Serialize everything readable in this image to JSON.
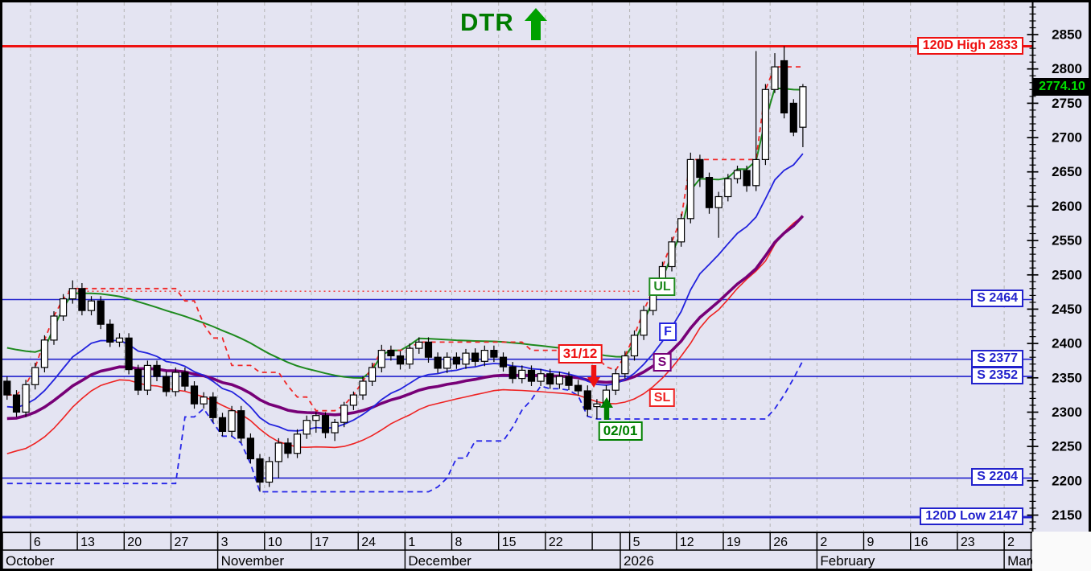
{
  "window": {
    "background": "#e4e4f2",
    "corner_background": "#fafafa"
  },
  "title": {
    "text": "DTR",
    "arrow_icon": "up-arrow",
    "color": "#007c00",
    "arrow_color": "#00a000"
  },
  "last_price": {
    "value": "2774.10",
    "text_color": "#00dd00",
    "background": "#000000"
  },
  "chart_data": {
    "type": "candlestick-ohlc",
    "unit": "trading-day",
    "title": "DTR",
    "last_close": 2774.1,
    "y_axis": {
      "min": 2150,
      "max": 2900,
      "major_step": 50,
      "minor_step": 10
    },
    "x_axis": {
      "weeks": [
        {
          "label": "",
          "days": 3
        },
        {
          "label": "6",
          "days": 5
        },
        {
          "label": "13",
          "days": 5
        },
        {
          "label": "20",
          "days": 5
        },
        {
          "label": "27",
          "days": 5
        },
        {
          "label": "3",
          "days": 5
        },
        {
          "label": "10",
          "days": 5
        },
        {
          "label": "17",
          "days": 5
        },
        {
          "label": "24",
          "days": 5
        },
        {
          "label": "1",
          "days": 5
        },
        {
          "label": "8",
          "days": 5
        },
        {
          "label": "15",
          "days": 5
        },
        {
          "label": "22",
          "days": 5
        },
        {
          "label": "",
          "days": 4
        },
        {
          "label": "5",
          "days": 5
        },
        {
          "label": "12",
          "days": 5
        },
        {
          "label": "19",
          "days": 5
        },
        {
          "label": "26",
          "days": 5
        },
        {
          "label": "2",
          "days": 5
        },
        {
          "label": "9",
          "days": 5
        },
        {
          "label": "16",
          "days": 5
        },
        {
          "label": "23",
          "days": 5
        },
        {
          "label": "2",
          "days": 3
        }
      ],
      "months": [
        {
          "label": "October",
          "days": 23
        },
        {
          "label": "November",
          "days": 20
        },
        {
          "label": "December",
          "days": 23
        },
        {
          "label": "2026",
          "days": 21
        },
        {
          "label": "February",
          "days": 20
        },
        {
          "label": "March",
          "days": 3
        }
      ]
    },
    "levels": [
      {
        "label": "120D High 2833",
        "price": 2833,
        "color": "#ee1111",
        "line_width": 3
      },
      {
        "label": "S 2464",
        "price": 2464,
        "color": "#2222cc",
        "line_width": 1.6
      },
      {
        "label": "S 2377",
        "price": 2377,
        "color": "#2222cc",
        "line_width": 1.6
      },
      {
        "label": "S 2352",
        "price": 2352,
        "color": "#2222cc",
        "line_width": 1.6
      },
      {
        "label": "S 2204",
        "price": 2204,
        "color": "#2222cc",
        "line_width": 1.6
      },
      {
        "label": "120D Low 2147",
        "price": 2147,
        "color": "#2222cc",
        "line_width": 3
      }
    ],
    "ma_labels": [
      {
        "label": "UL",
        "color": "#1e8a1e",
        "day": 70,
        "price": 2482
      },
      {
        "label": "F",
        "color": "#2222dd",
        "day": 70.6,
        "price": 2417
      },
      {
        "label": "S",
        "color": "#770077",
        "day": 70,
        "price": 2372
      },
      {
        "label": "SL",
        "color": "#ee2222",
        "day": 70,
        "price": 2321
      }
    ],
    "signals": [
      {
        "label": "31/12",
        "color": "#ee1111",
        "direction": "down",
        "day": 62.7,
        "price": 2336
      },
      {
        "label": "02/01",
        "color": "#008000",
        "direction": "up",
        "day": 64.0,
        "price": 2322
      }
    ],
    "prior_high": {
      "level": 2476,
      "from_day": 7,
      "to_day": 68
    },
    "trailing_high_window": 12,
    "trailing_low_window": 19,
    "pre_chart_low": 2196,
    "overlay_colors": {
      "UL": "#1e8a1e",
      "F": "#2222dd",
      "S": "#770077",
      "SL": "#ee2222",
      "dashed_high": "#f02828",
      "dashed_low": "#2424e8",
      "dotted_prior_high": "#f04848",
      "grid": "#b4b4b4"
    },
    "candles": [
      [
        2345,
        2352,
        2318,
        2325
      ],
      [
        2325,
        2332,
        2293,
        2300
      ],
      [
        2300,
        2347,
        2293,
        2340
      ],
      [
        2340,
        2372,
        2333,
        2365
      ],
      [
        2365,
        2412,
        2358,
        2405
      ],
      [
        2405,
        2447,
        2398,
        2440
      ],
      [
        2440,
        2472,
        2433,
        2465
      ],
      [
        2465,
        2492,
        2458,
        2480
      ],
      [
        2480,
        2488,
        2441,
        2448
      ],
      [
        2448,
        2469,
        2441,
        2462
      ],
      [
        2462,
        2469,
        2421,
        2428
      ],
      [
        2428,
        2435,
        2395,
        2402
      ],
      [
        2402,
        2415,
        2395,
        2408
      ],
      [
        2408,
        2415,
        2355,
        2362
      ],
      [
        2362,
        2369,
        2325,
        2332
      ],
      [
        2332,
        2375,
        2325,
        2368
      ],
      [
        2368,
        2375,
        2345,
        2352
      ],
      [
        2352,
        2359,
        2323,
        2330
      ],
      [
        2330,
        2365,
        2323,
        2358
      ],
      [
        2358,
        2365,
        2331,
        2338
      ],
      [
        2338,
        2345,
        2305,
        2312
      ],
      [
        2312,
        2329,
        2305,
        2322
      ],
      [
        2322,
        2329,
        2285,
        2292
      ],
      [
        2292,
        2299,
        2265,
        2272
      ],
      [
        2272,
        2309,
        2265,
        2302
      ],
      [
        2302,
        2309,
        2255,
        2262
      ],
      [
        2262,
        2269,
        2225,
        2232
      ],
      [
        2232,
        2239,
        2184,
        2198
      ],
      [
        2198,
        2235,
        2191,
        2228
      ],
      [
        2228,
        2262,
        2204,
        2255
      ],
      [
        2255,
        2262,
        2233,
        2240
      ],
      [
        2240,
        2275,
        2233,
        2268
      ],
      [
        2268,
        2295,
        2261,
        2288
      ],
      [
        2288,
        2300,
        2270,
        2295
      ],
      [
        2295,
        2300,
        2262,
        2270
      ],
      [
        2270,
        2290,
        2258,
        2285
      ],
      [
        2285,
        2315,
        2278,
        2310
      ],
      [
        2310,
        2330,
        2303,
        2325
      ],
      [
        2325,
        2352,
        2318,
        2345
      ],
      [
        2345,
        2372,
        2338,
        2365
      ],
      [
        2365,
        2398,
        2358,
        2390
      ],
      [
        2390,
        2397,
        2375,
        2382
      ],
      [
        2382,
        2389,
        2362,
        2370
      ],
      [
        2370,
        2400,
        2363,
        2393
      ],
      [
        2393,
        2409,
        2385,
        2402
      ],
      [
        2402,
        2409,
        2372,
        2380
      ],
      [
        2380,
        2387,
        2357,
        2364
      ],
      [
        2364,
        2387,
        2357,
        2380
      ],
      [
        2380,
        2387,
        2363,
        2370
      ],
      [
        2370,
        2392,
        2363,
        2386
      ],
      [
        2386,
        2393,
        2367,
        2374
      ],
      [
        2374,
        2397,
        2367,
        2390
      ],
      [
        2390,
        2397,
        2373,
        2380
      ],
      [
        2380,
        2387,
        2359,
        2366
      ],
      [
        2366,
        2373,
        2342,
        2349
      ],
      [
        2349,
        2368,
        2342,
        2361
      ],
      [
        2361,
        2368,
        2338,
        2345
      ],
      [
        2345,
        2363,
        2338,
        2356
      ],
      [
        2356,
        2363,
        2334,
        2341
      ],
      [
        2341,
        2359,
        2334,
        2352
      ],
      [
        2352,
        2359,
        2332,
        2339
      ],
      [
        2339,
        2347,
        2324,
        2331
      ],
      [
        2331,
        2339,
        2294,
        2304
      ],
      [
        2308,
        2319,
        2290,
        2312
      ],
      [
        2312,
        2339,
        2305,
        2332
      ],
      [
        2332,
        2363,
        2325,
        2356
      ],
      [
        2356,
        2389,
        2349,
        2382
      ],
      [
        2382,
        2419,
        2375,
        2412
      ],
      [
        2412,
        2455,
        2405,
        2448
      ],
      [
        2448,
        2485,
        2441,
        2478
      ],
      [
        2478,
        2519,
        2471,
        2512
      ],
      [
        2512,
        2555,
        2505,
        2548
      ],
      [
        2548,
        2589,
        2541,
        2582
      ],
      [
        2582,
        2678,
        2575,
        2668
      ],
      [
        2668,
        2675,
        2628,
        2642
      ],
      [
        2642,
        2649,
        2589,
        2598
      ],
      [
        2598,
        2621,
        2554,
        2614
      ],
      [
        2614,
        2647,
        2607,
        2640
      ],
      [
        2640,
        2659,
        2633,
        2652
      ],
      [
        2652,
        2659,
        2621,
        2630
      ],
      [
        2630,
        2826,
        2622,
        2668
      ],
      [
        2668,
        2778,
        2660,
        2770
      ],
      [
        2770,
        2823,
        2765,
        2803
      ],
      [
        2812,
        2833,
        2728,
        2736
      ],
      [
        2750,
        2756,
        2702,
        2708
      ],
      [
        2715,
        2778,
        2686,
        2774.1
      ]
    ]
  }
}
